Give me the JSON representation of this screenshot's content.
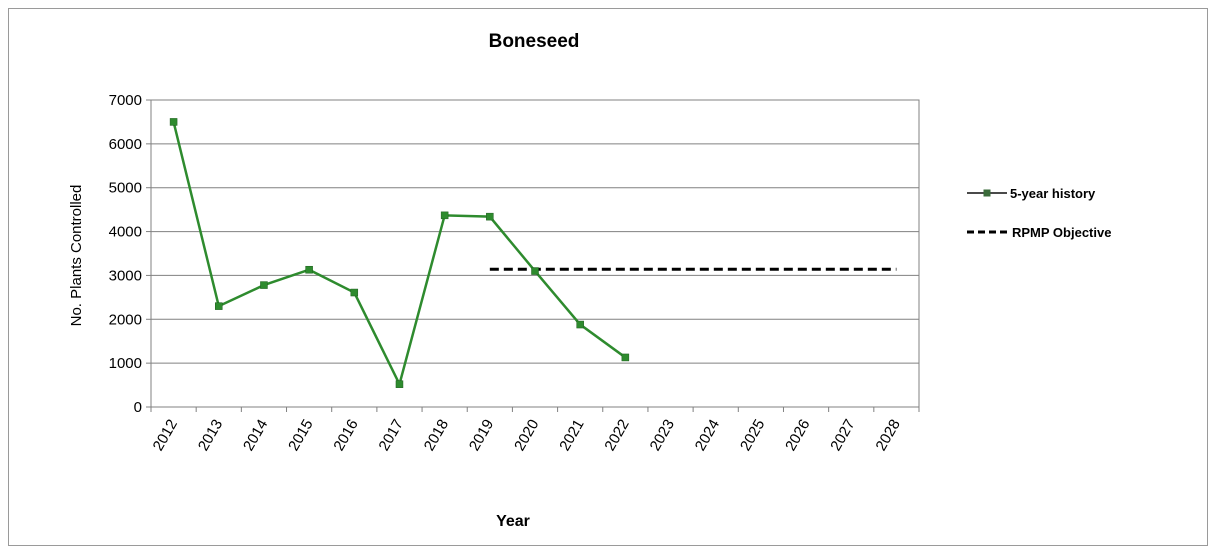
{
  "chart_data": {
    "type": "line",
    "title": "Boneseed",
    "xlabel": "Year",
    "ylabel": "No. Plants Controlled",
    "ylim": [
      0,
      7000
    ],
    "yticks": [
      0,
      1000,
      2000,
      3000,
      4000,
      5000,
      6000,
      7000
    ],
    "categories": [
      "2012",
      "2013",
      "2014",
      "2015",
      "2016",
      "2017",
      "2018",
      "2019",
      "2020",
      "2021",
      "2022",
      "2023",
      "2024",
      "2025",
      "2026",
      "2027",
      "2028"
    ],
    "grid": "horizontal",
    "legend_position": "right",
    "series": [
      {
        "name": "5-year history",
        "color": "#2e8b2e",
        "marker": "square",
        "values": [
          6500,
          2300,
          2780,
          3130,
          2610,
          520,
          4370,
          4340,
          3100,
          1880,
          1130,
          null,
          null,
          null,
          null,
          null,
          null
        ]
      },
      {
        "name": "RPMP Objective",
        "color": "#000000",
        "style": "dashed",
        "x_range": [
          "2019",
          "2028"
        ],
        "value": 3140
      }
    ]
  }
}
